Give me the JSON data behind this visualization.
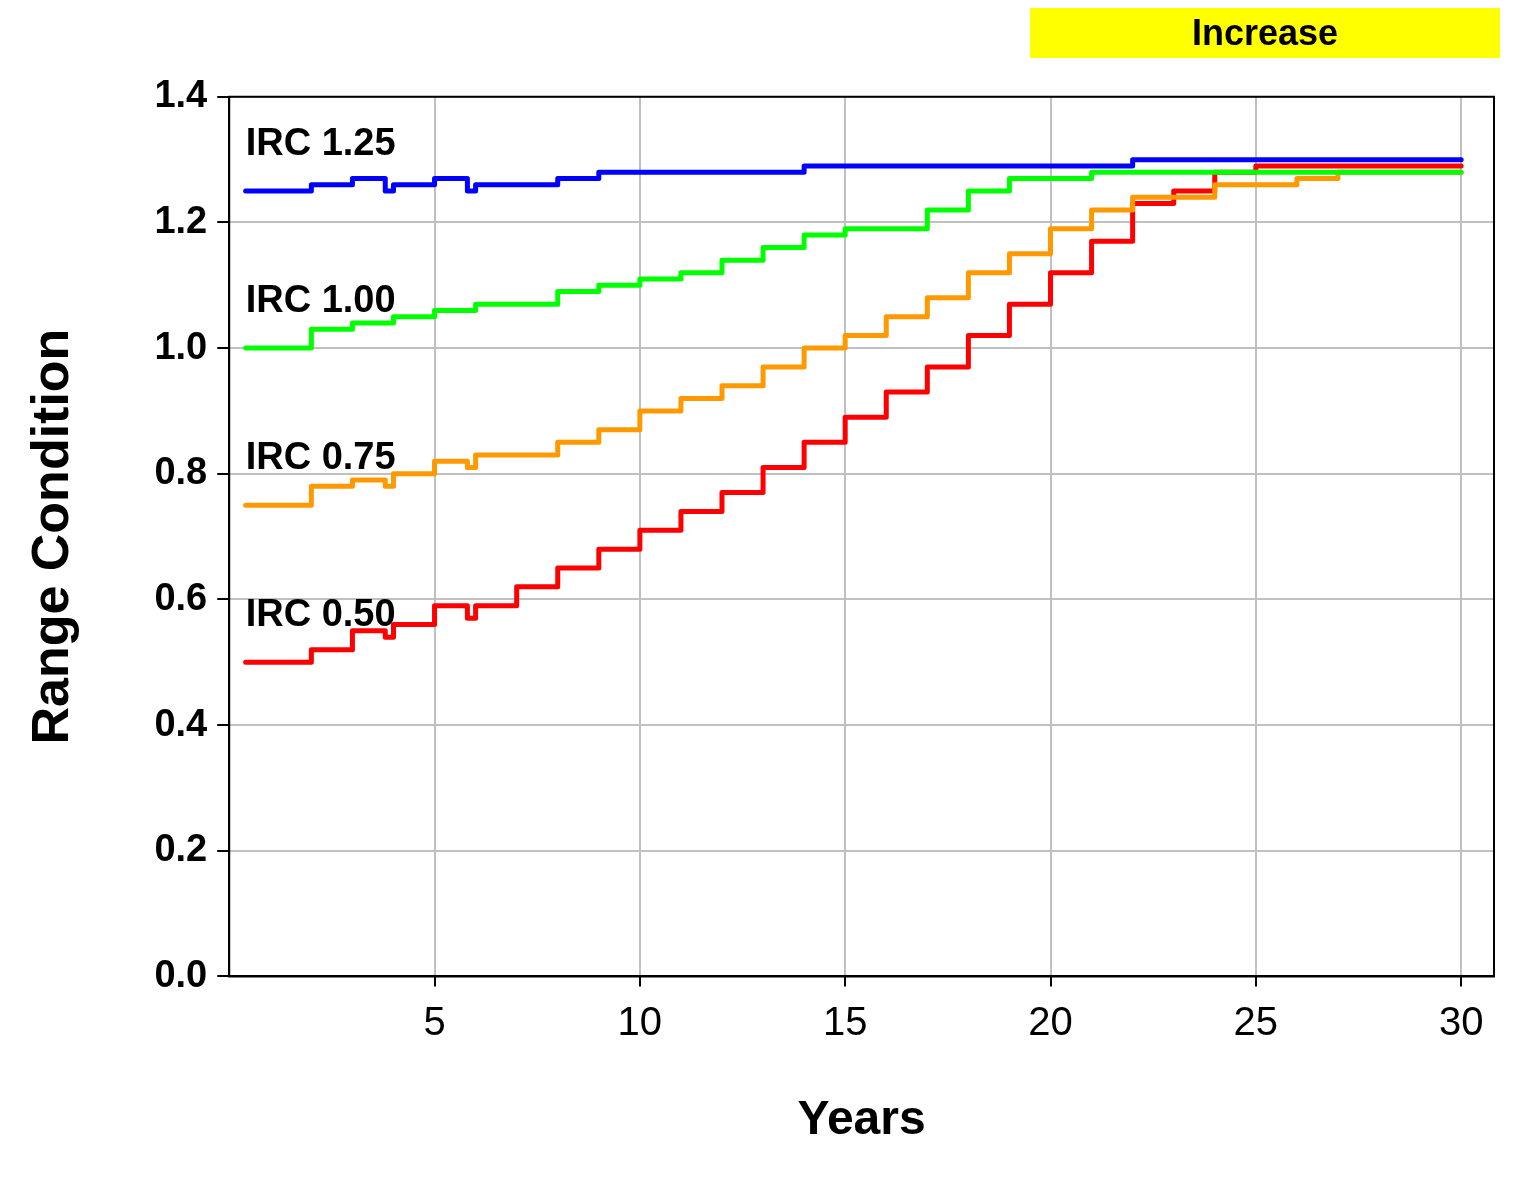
{
  "chart_data": {
    "type": "step",
    "xlabel": "Years",
    "ylabel": "Range Condition",
    "annotations": [
      "Increase"
    ],
    "xlim": [
      0,
      30.8
    ],
    "xticks": [
      5,
      10,
      15,
      20,
      25,
      30
    ],
    "ylim": [
      0,
      1.4
    ],
    "yticks": [
      {
        "value": 0,
        "label": "0.0"
      },
      0.2,
      0.4,
      0.6,
      0.8,
      {
        "value": 1,
        "label": "1.0"
      },
      1.2,
      1.4
    ],
    "grid": true,
    "legend": false,
    "series": [
      {
        "name": "IRC 1.25",
        "color": "#0000ff",
        "x": [
          0.4,
          2,
          3,
          3.8,
          4,
          5,
          5.8,
          6,
          8,
          9,
          14,
          22,
          30
        ],
        "values": [
          1.25,
          1.26,
          1.27,
          1.25,
          1.26,
          1.27,
          1.25,
          1.26,
          1.27,
          1.28,
          1.29,
          1.3,
          1.3
        ]
      },
      {
        "name": "IRC 1.00",
        "color": "#00ff00",
        "x": [
          0.4,
          2,
          3,
          4,
          5,
          6,
          8,
          9,
          10,
          11,
          12,
          13,
          14,
          15,
          17,
          18,
          19,
          21,
          30
        ],
        "values": [
          1,
          1.03,
          1.04,
          1.05,
          1.06,
          1.07,
          1.09,
          1.1,
          1.11,
          1.12,
          1.14,
          1.16,
          1.18,
          1.19,
          1.22,
          1.25,
          1.27,
          1.28,
          1.28
        ]
      },
      {
        "name": "IRC 0.75",
        "color": "#ff9900",
        "x": [
          0.4,
          2,
          3,
          3.8,
          4,
          5,
          5.8,
          6,
          8,
          9,
          10,
          11,
          12,
          13,
          14,
          15,
          16,
          17,
          18,
          19,
          20,
          21,
          22,
          24,
          26,
          27,
          30
        ],
        "values": [
          0.75,
          0.78,
          0.79,
          0.78,
          0.8,
          0.82,
          0.81,
          0.83,
          0.85,
          0.87,
          0.9,
          0.92,
          0.94,
          0.97,
          1,
          1.02,
          1.05,
          1.08,
          1.12,
          1.15,
          1.19,
          1.22,
          1.24,
          1.26,
          1.27,
          1.28,
          1.28
        ]
      },
      {
        "name": "IRC 0.50",
        "color": "#ff0000",
        "x": [
          0.4,
          2,
          3,
          3.8,
          4,
          5,
          5.8,
          6,
          7,
          8,
          9,
          10,
          11,
          12,
          13,
          14,
          15,
          16,
          17,
          18,
          19,
          20,
          21,
          22,
          23,
          24,
          25,
          30
        ],
        "values": [
          0.5,
          0.52,
          0.55,
          0.54,
          0.56,
          0.59,
          0.57,
          0.59,
          0.62,
          0.65,
          0.68,
          0.71,
          0.74,
          0.77,
          0.81,
          0.85,
          0.89,
          0.93,
          0.97,
          1.02,
          1.07,
          1.12,
          1.17,
          1.23,
          1.25,
          1.28,
          1.29,
          1.29
        ]
      }
    ]
  }
}
